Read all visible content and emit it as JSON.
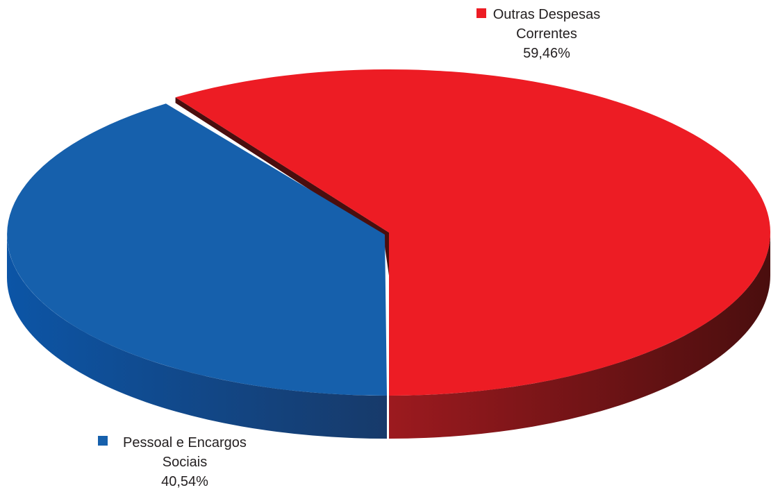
{
  "chart_data": {
    "type": "pie",
    "style": "3d",
    "series": [
      {
        "key": "outras",
        "value": 59.46,
        "label_lines": [
          "Outras Despesas",
          "Correntes"
        ],
        "percent_label": "59,46%",
        "color": "#ed1c24",
        "side_color_light": "#9c1a1f",
        "side_color_dark": "#4a0e0e"
      },
      {
        "key": "pessoal",
        "value": 40.54,
        "label_lines": [
          "Pessoal e Encargos",
          "Sociais"
        ],
        "percent_label": "40,54%",
        "color": "#1660ac",
        "side_color_light": "#0c55a6",
        "side_color_dark": "#173a6a"
      }
    ]
  }
}
